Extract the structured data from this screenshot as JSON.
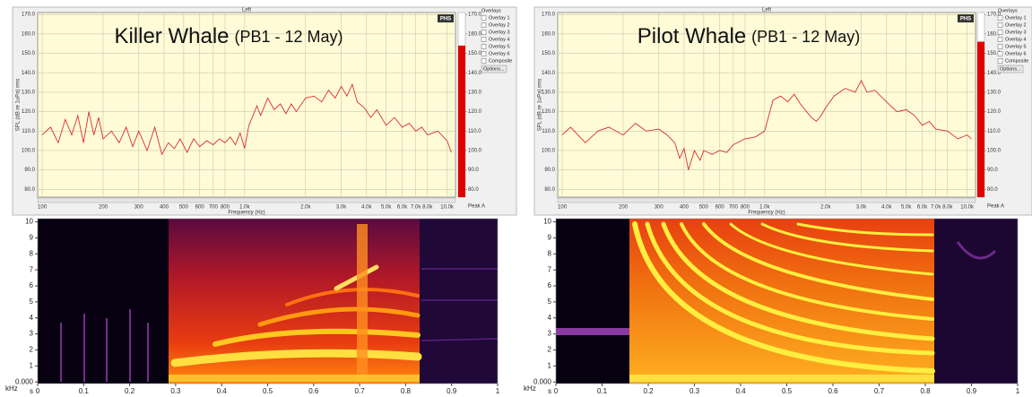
{
  "chart_data": [
    {
      "type": "line",
      "header": "Left",
      "title": "Killer Whale",
      "subtitle": "(PB1 - 12 May)",
      "badge": "PHS",
      "xlabel": "Frequency (Hz)",
      "ylabel": "SPL (dB re 1uPa) rms",
      "xscale": "log",
      "grid": true,
      "color": "#d83030",
      "x": [
        100,
        110,
        120,
        130,
        140,
        150,
        160,
        170,
        180,
        190,
        200,
        220,
        240,
        260,
        280,
        300,
        330,
        360,
        390,
        420,
        450,
        480,
        520,
        560,
        600,
        650,
        700,
        750,
        800,
        850,
        900,
        950,
        1000,
        1050,
        1100,
        1150,
        1200,
        1300,
        1400,
        1500,
        1600,
        1700,
        1800,
        2000,
        2200,
        2400,
        2600,
        2800,
        3000,
        3200,
        3400,
        3600,
        3900,
        4200,
        4500,
        5000,
        5500,
        6000,
        6500,
        7000,
        7500,
        8000,
        9000,
        10000,
        10500
      ],
      "values": [
        108,
        112,
        104,
        116,
        108,
        118,
        104,
        120,
        108,
        117,
        106,
        110,
        104,
        112,
        102,
        110,
        100,
        112,
        98,
        104,
        101,
        106,
        99,
        106,
        102,
        105,
        103,
        106,
        104,
        107,
        103,
        109,
        101,
        113,
        118,
        123,
        118,
        127,
        121,
        124,
        119,
        124,
        120,
        127,
        128,
        125,
        131,
        127,
        133,
        128,
        134,
        125,
        122,
        117,
        121,
        113,
        117,
        112,
        114,
        110,
        112,
        108,
        110,
        105,
        99
      ],
      "xlim": [
        95,
        11000
      ],
      "xticks": [
        100,
        200,
        300,
        400,
        500,
        600,
        700,
        800,
        {
          "value": 1000,
          "label": "1.0k"
        },
        {
          "value": 2000,
          "label": "2.0k"
        },
        {
          "value": 3000,
          "label": "3.0k"
        },
        {
          "value": 4000,
          "label": "4.0k"
        },
        {
          "value": 5000,
          "label": "5.0k"
        },
        {
          "value": 6000,
          "label": "6.0k"
        },
        {
          "value": 7000,
          "label": "7.0k"
        },
        {
          "value": 8000,
          "label": "8.0k"
        },
        {
          "value": 10000,
          "label": "10.0k"
        }
      ],
      "ylim": [
        76,
        171
      ],
      "yticks": [
        {
          "value": 170,
          "label": "170.0"
        },
        {
          "value": 160,
          "label": "160.0"
        },
        {
          "value": 150,
          "label": "150.0"
        },
        {
          "value": 140,
          "label": "140.0"
        },
        {
          "value": 130,
          "label": "130.0"
        },
        {
          "value": 120,
          "label": "120.0"
        },
        {
          "value": 110,
          "label": "110.0"
        },
        {
          "value": 100,
          "label": "100.0"
        },
        {
          "value": 90,
          "label": "90.0"
        },
        {
          "value": 80,
          "label": "80.0"
        }
      ],
      "y2lim": [
        76,
        171
      ],
      "y2ticks": [
        {
          "value": 170,
          "label": "170.0"
        },
        {
          "value": 160,
          "label": "160.0"
        },
        {
          "value": 150,
          "label": "150.0"
        },
        {
          "value": 140,
          "label": "140.0"
        },
        {
          "value": 130,
          "label": "130.0"
        },
        {
          "value": 120,
          "label": "120.0"
        },
        {
          "value": 110,
          "label": "110.0"
        },
        {
          "value": 100,
          "label": "100.0"
        },
        {
          "value": 90,
          "label": "90.0"
        },
        {
          "value": 80,
          "label": "80.0"
        }
      ],
      "meter": {
        "name": "Peak A",
        "value": 154,
        "color": "#e00000"
      },
      "legend": {
        "title": "Overlays",
        "items": [
          {
            "name": "Overlay 1",
            "color": "#2ca02c"
          },
          {
            "name": "Overlay 2",
            "color": "#17becf"
          },
          {
            "name": "Overlay 3",
            "color": "#1f4fd0"
          },
          {
            "name": "Overlay 4",
            "color": "#c020c0"
          },
          {
            "name": "Overlay 5",
            "color": "#e06090"
          },
          {
            "name": "Overlay 6",
            "color": "#e08020"
          },
          {
            "name": "Composite",
            "color": "#000000"
          }
        ],
        "button": "Options..."
      }
    },
    {
      "type": "spectrogram",
      "xlabel": "s",
      "ylabel": "kHz",
      "xlim": [
        0,
        1
      ],
      "ylim": [
        -0.1,
        10.2
      ],
      "xticks": [
        0,
        0.1,
        0.2,
        0.3,
        0.4,
        0.5,
        0.6,
        0.7,
        0.8,
        0.9,
        1
      ],
      "yticks": [
        {
          "value": 0,
          "label": "0.000"
        },
        1,
        2,
        3,
        4,
        5,
        6,
        7,
        8,
        9,
        10
      ]
    },
    {
      "type": "line",
      "header": "Left",
      "title": "Pilot Whale",
      "subtitle": "(PB1 - 12 May)",
      "badge": "PHS",
      "xlabel": "Frequency (Hz)",
      "ylabel": "SPL (dB re 1uPa) rms",
      "xscale": "log",
      "grid": true,
      "color": "#d83030",
      "x": [
        100,
        110,
        130,
        150,
        170,
        200,
        230,
        260,
        300,
        330,
        360,
        380,
        400,
        420,
        450,
        480,
        500,
        550,
        600,
        650,
        700,
        800,
        900,
        1000,
        1100,
        1200,
        1300,
        1400,
        1500,
        1700,
        1800,
        1900,
        2000,
        2200,
        2500,
        2800,
        3000,
        3200,
        3500,
        4000,
        4500,
        5000,
        5500,
        6000,
        6500,
        7000,
        8000,
        9000,
        10000,
        10500
      ],
      "values": [
        108,
        112,
        104,
        110,
        112,
        108,
        114,
        110,
        111,
        108,
        104,
        96,
        101,
        90,
        100,
        95,
        100,
        98,
        100,
        99,
        103,
        106,
        107,
        110,
        126,
        128,
        125,
        129,
        124,
        117,
        115,
        118,
        122,
        128,
        132,
        130,
        136,
        130,
        131,
        125,
        120,
        121,
        118,
        113,
        115,
        111,
        110,
        106,
        108,
        106
      ],
      "xlim": [
        95,
        11000
      ],
      "xticks": [
        100,
        200,
        300,
        400,
        500,
        600,
        700,
        800,
        {
          "value": 1000,
          "label": "1.0k"
        },
        {
          "value": 2000,
          "label": "2.0k"
        },
        {
          "value": 3000,
          "label": "3.0k"
        },
        {
          "value": 4000,
          "label": "4.0k"
        },
        {
          "value": 5000,
          "label": "5.0k"
        },
        {
          "value": 6000,
          "label": "6.0k"
        },
        {
          "value": 7000,
          "label": "7.0k"
        },
        {
          "value": 8000,
          "label": "8.0k"
        },
        {
          "value": 10000,
          "label": "10.0k"
        }
      ],
      "ylim": [
        76,
        171
      ],
      "yticks": [
        {
          "value": 170,
          "label": "170.0"
        },
        {
          "value": 160,
          "label": "160.0"
        },
        {
          "value": 150,
          "label": "150.0"
        },
        {
          "value": 140,
          "label": "140.0"
        },
        {
          "value": 130,
          "label": "130.0"
        },
        {
          "value": 120,
          "label": "120.0"
        },
        {
          "value": 110,
          "label": "110.0"
        },
        {
          "value": 100,
          "label": "100.0"
        },
        {
          "value": 90,
          "label": "90.0"
        },
        {
          "value": 80,
          "label": "80.0"
        }
      ],
      "y2lim": [
        76,
        171
      ],
      "y2ticks": [
        {
          "value": 170,
          "label": "170.0"
        },
        {
          "value": 160,
          "label": "160.0"
        },
        {
          "value": 150,
          "label": "150.0"
        },
        {
          "value": 140,
          "label": "140.0"
        },
        {
          "value": 130,
          "label": "130.0"
        },
        {
          "value": 120,
          "label": "120.0"
        },
        {
          "value": 110,
          "label": "110.0"
        },
        {
          "value": 100,
          "label": "100.0"
        },
        {
          "value": 90,
          "label": "90.0"
        },
        {
          "value": 80,
          "label": "80.0"
        }
      ],
      "meter": {
        "name": "Peak A",
        "value": 156,
        "color": "#e00000"
      },
      "legend": {
        "title": "Overlays",
        "items": [
          {
            "name": "Overlay 1",
            "color": "#2ca02c"
          },
          {
            "name": "Overlay 2",
            "color": "#17becf"
          },
          {
            "name": "Overlay 3",
            "color": "#1f4fd0"
          },
          {
            "name": "Overlay 4",
            "color": "#c020c0"
          },
          {
            "name": "Overlay 5",
            "color": "#e06090"
          },
          {
            "name": "Overlay 6",
            "color": "#e08020"
          },
          {
            "name": "Composite",
            "color": "#000000"
          }
        ],
        "button": "Options..."
      }
    },
    {
      "type": "spectrogram",
      "xlabel": "s",
      "ylabel": "kHz",
      "xlim": [
        0,
        1
      ],
      "ylim": [
        -0.1,
        10.2
      ],
      "xticks": [
        0,
        0.1,
        0.2,
        0.3,
        0.4,
        0.5,
        0.6,
        0.7,
        0.8,
        0.9,
        1
      ],
      "yticks": [
        {
          "value": 0,
          "label": "0.000"
        },
        1,
        2,
        3,
        4,
        5,
        6,
        7,
        8,
        9,
        10
      ]
    }
  ]
}
